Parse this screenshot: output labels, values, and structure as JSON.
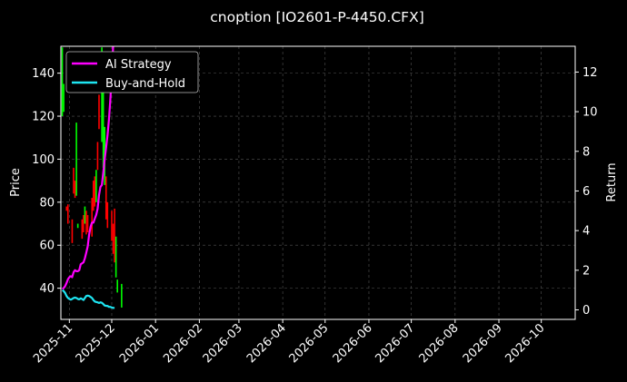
{
  "chart_data": {
    "type": "line",
    "title": "cnoption [IO2601-P-4450.CFX]",
    "ylabel": "Price",
    "y2label": "Return",
    "xlim": [
      "2025-10-26",
      "2026-10-25"
    ],
    "ylim": [
      25.5,
      152.5
    ],
    "y2lim": [
      -0.48,
      13.3
    ],
    "xticks": [
      "2025-11",
      "2025-12",
      "2026-01",
      "2026-02",
      "2026-03",
      "2026-04",
      "2026-05",
      "2026-06",
      "2026-07",
      "2026-08",
      "2026-09",
      "2026-10"
    ],
    "xtick_dates": [
      "2025-11-01",
      "2025-12-01",
      "2026-01-01",
      "2026-02-01",
      "2026-03-01",
      "2026-04-01",
      "2026-05-01",
      "2026-06-01",
      "2026-07-01",
      "2026-08-01",
      "2026-09-01",
      "2026-10-01"
    ],
    "yticks": [
      40,
      60,
      80,
      100,
      120,
      140
    ],
    "y2ticks": [
      0,
      2,
      4,
      6,
      8,
      10,
      12
    ],
    "grid": true,
    "legend_position": "upper-left",
    "candles": [
      {
        "date": "2025-10-27",
        "low": 120,
        "high": 152,
        "up": true
      },
      {
        "date": "2025-10-28",
        "low": 122,
        "high": 135,
        "up": true
      },
      {
        "date": "2025-10-30",
        "low": 76,
        "high": 78,
        "up": false
      },
      {
        "date": "2025-10-31",
        "low": 70,
        "high": 79,
        "up": false
      },
      {
        "date": "2025-11-03",
        "low": 61,
        "high": 72,
        "up": false
      },
      {
        "date": "2025-11-04",
        "low": 84,
        "high": 96,
        "up": false
      },
      {
        "date": "2025-11-05",
        "low": 82,
        "high": 90,
        "up": false
      },
      {
        "date": "2025-11-06",
        "low": 83,
        "high": 117,
        "up": true
      },
      {
        "date": "2025-11-07",
        "low": 68,
        "high": 70,
        "up": true
      },
      {
        "date": "2025-11-10",
        "low": 63,
        "high": 72,
        "up": false
      },
      {
        "date": "2025-11-11",
        "low": 66,
        "high": 74,
        "up": false
      },
      {
        "date": "2025-11-12",
        "low": 70,
        "high": 78,
        "up": true
      },
      {
        "date": "2025-11-13",
        "low": 65,
        "high": 76,
        "up": false
      },
      {
        "date": "2025-11-14",
        "low": 66,
        "high": 74,
        "up": false
      },
      {
        "date": "2025-11-17",
        "low": 64,
        "high": 82,
        "up": false
      },
      {
        "date": "2025-11-18",
        "low": 76,
        "high": 90,
        "up": false
      },
      {
        "date": "2025-11-19",
        "low": 78,
        "high": 92,
        "up": false
      },
      {
        "date": "2025-11-20",
        "low": 80,
        "high": 95,
        "up": true
      },
      {
        "date": "2025-11-21",
        "low": 95,
        "high": 108,
        "up": false
      },
      {
        "date": "2025-11-22",
        "low": 114,
        "high": 130,
        "up": false
      },
      {
        "date": "2025-11-24",
        "low": 108,
        "high": 152,
        "up": true
      },
      {
        "date": "2025-11-25",
        "low": 96,
        "high": 136,
        "up": true
      },
      {
        "date": "2025-11-26",
        "low": 88,
        "high": 115,
        "up": true
      },
      {
        "date": "2025-11-27",
        "low": 72,
        "high": 92,
        "up": false
      },
      {
        "date": "2025-11-28",
        "low": 68,
        "high": 80,
        "up": false
      },
      {
        "date": "2025-12-01",
        "low": 62,
        "high": 76,
        "up": false
      },
      {
        "date": "2025-12-02",
        "low": 56,
        "high": 70,
        "up": false
      },
      {
        "date": "2025-12-03",
        "low": 52,
        "high": 77,
        "up": false
      },
      {
        "date": "2025-12-04",
        "low": 45,
        "high": 64,
        "up": true
      },
      {
        "date": "2025-12-05",
        "low": 38,
        "high": 44,
        "up": true
      },
      {
        "date": "2025-12-08",
        "low": 31,
        "high": 42,
        "up": true
      }
    ],
    "series": [
      {
        "name": "AI Strategy",
        "color": "#ff00ff",
        "points": [
          [
            "2025-10-27",
            1.05
          ],
          [
            "2025-10-28",
            1.1
          ],
          [
            "2025-10-29",
            1.2
          ],
          [
            "2025-10-30",
            1.35
          ],
          [
            "2025-10-31",
            1.55
          ],
          [
            "2025-11-01",
            1.65
          ],
          [
            "2025-11-02",
            1.7
          ],
          [
            "2025-11-03",
            1.65
          ],
          [
            "2025-11-04",
            1.9
          ],
          [
            "2025-11-05",
            2.0
          ],
          [
            "2025-11-06",
            1.95
          ],
          [
            "2025-11-07",
            1.95
          ],
          [
            "2025-11-08",
            2.0
          ],
          [
            "2025-11-09",
            2.3
          ],
          [
            "2025-11-10",
            2.35
          ],
          [
            "2025-11-11",
            2.4
          ],
          [
            "2025-11-12",
            2.6
          ],
          [
            "2025-11-13",
            2.9
          ],
          [
            "2025-11-14",
            3.2
          ],
          [
            "2025-11-15",
            3.8
          ],
          [
            "2025-11-16",
            4.2
          ],
          [
            "2025-11-17",
            4.4
          ],
          [
            "2025-11-18",
            4.4
          ],
          [
            "2025-11-19",
            4.6
          ],
          [
            "2025-11-20",
            4.8
          ],
          [
            "2025-11-21",
            5.1
          ],
          [
            "2025-11-22",
            5.8
          ],
          [
            "2025-11-23",
            6.2
          ],
          [
            "2025-11-24",
            6.3
          ],
          [
            "2025-11-25",
            6.9
          ],
          [
            "2025-11-26",
            7.6
          ],
          [
            "2025-11-27",
            8.2
          ],
          [
            "2025-11-28",
            8.8
          ],
          [
            "2025-11-29",
            9.6
          ],
          [
            "2025-11-30",
            10.6
          ],
          [
            "2025-12-01",
            11.8
          ],
          [
            "2025-12-02",
            13.3
          ]
        ]
      },
      {
        "name": "Buy-and-Hold",
        "color": "#1ee5f2",
        "points": [
          [
            "2025-10-27",
            1.0
          ],
          [
            "2025-10-28",
            0.95
          ],
          [
            "2025-10-29",
            0.85
          ],
          [
            "2025-10-30",
            0.7
          ],
          [
            "2025-10-31",
            0.6
          ],
          [
            "2025-11-01",
            0.55
          ],
          [
            "2025-11-02",
            0.52
          ],
          [
            "2025-11-03",
            0.55
          ],
          [
            "2025-11-04",
            0.6
          ],
          [
            "2025-11-05",
            0.62
          ],
          [
            "2025-11-06",
            0.6
          ],
          [
            "2025-11-07",
            0.55
          ],
          [
            "2025-11-08",
            0.53
          ],
          [
            "2025-11-09",
            0.58
          ],
          [
            "2025-11-10",
            0.55
          ],
          [
            "2025-11-11",
            0.5
          ],
          [
            "2025-11-12",
            0.6
          ],
          [
            "2025-11-13",
            0.7
          ],
          [
            "2025-11-14",
            0.72
          ],
          [
            "2025-11-15",
            0.7
          ],
          [
            "2025-11-16",
            0.65
          ],
          [
            "2025-11-17",
            0.6
          ],
          [
            "2025-11-18",
            0.5
          ],
          [
            "2025-11-19",
            0.42
          ],
          [
            "2025-11-20",
            0.4
          ],
          [
            "2025-11-21",
            0.38
          ],
          [
            "2025-11-22",
            0.35
          ],
          [
            "2025-11-23",
            0.38
          ],
          [
            "2025-11-24",
            0.36
          ],
          [
            "2025-11-25",
            0.3
          ],
          [
            "2025-11-26",
            0.22
          ],
          [
            "2025-11-27",
            0.2
          ],
          [
            "2025-11-28",
            0.2
          ],
          [
            "2025-11-29",
            0.15
          ],
          [
            "2025-11-30",
            0.15
          ],
          [
            "2025-12-01",
            0.12
          ],
          [
            "2025-12-02",
            0.1
          ],
          [
            "2025-12-03",
            0.1
          ]
        ]
      }
    ],
    "colors": {
      "background": "#000000",
      "text": "#ffffff",
      "grid": "#555555",
      "candle_up": "#00ff00",
      "candle_down": "#ff0000"
    }
  }
}
